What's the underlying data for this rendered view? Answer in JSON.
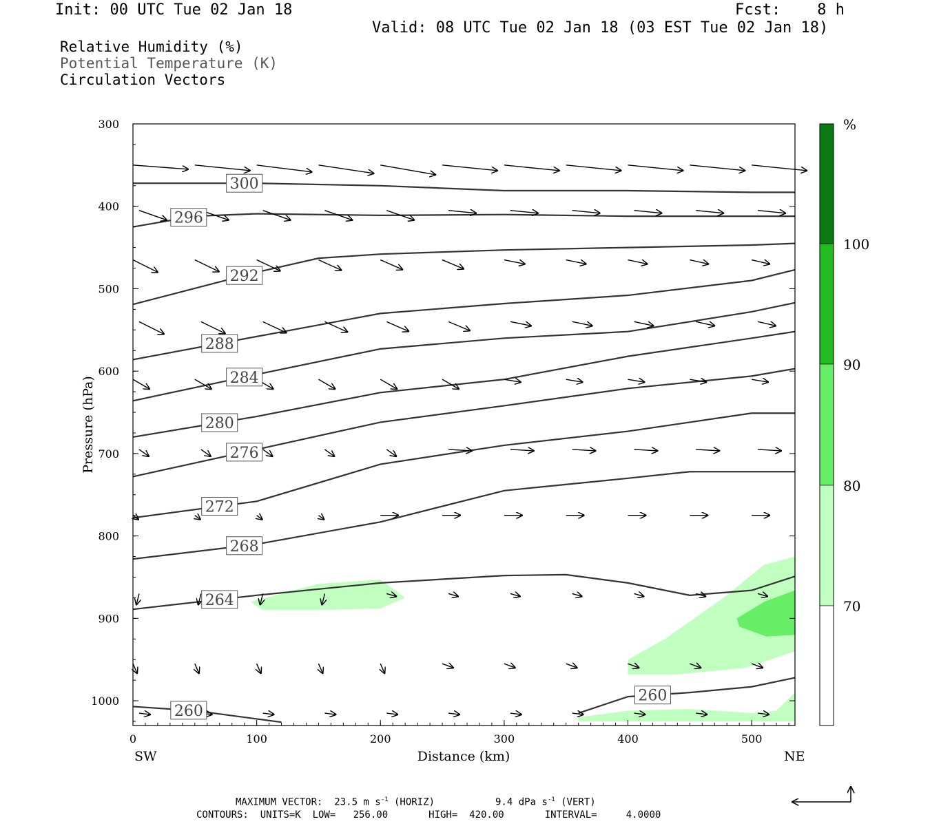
{
  "header": {
    "init": "Init: 00 UTC Tue 02 Jan 18",
    "fcst": "Fcst:    8 h",
    "valid": "Valid: 08 UTC Tue 02 Jan 18 (03 EST Tue 02 Jan 18)"
  },
  "fields": {
    "rh": "Relative Humidity (%)",
    "theta": "Potential Temperature (K)",
    "vectors": "Circulation Vectors"
  },
  "footer": {
    "max_vector": "MAXIMUM VECTOR:  23.5 m s",
    "max_vector_horiz": " (HORIZ)",
    "max_vector_vert_prefix": "9.4 dPa s",
    "max_vector_vert": " (VERT)",
    "exponent": "-1",
    "contours": "CONTOURS:  UNITS=K  LOW=   256.00       HIGH=  420.00       INTERVAL=     4.0000"
  },
  "colors": {
    "rh70": "#c0ffc0",
    "rh80": "#66ee66",
    "rh90": "#22bb22",
    "rh100": "#0b7a14",
    "contour": "#333333"
  },
  "chart_data": {
    "type": "cross-section",
    "xlabel": "Distance (km)",
    "ylabel": "Pressure (hPa)",
    "x_ticks": [
      "0",
      "100",
      "200",
      "300",
      "400",
      "500"
    ],
    "y_ticks": [
      "300",
      "400",
      "500",
      "600",
      "700",
      "800",
      "900",
      "1000"
    ],
    "xlim": [
      0,
      535
    ],
    "ylim": [
      1030,
      300
    ],
    "endpoints": {
      "left": "SW",
      "right": "NE"
    },
    "colorbar": {
      "unit": "%",
      "levels": [
        "70",
        "80",
        "90",
        "100"
      ]
    },
    "contour_levels": [
      260,
      264,
      268,
      272,
      276,
      280,
      284,
      288,
      292,
      296,
      300
    ],
    "isentropes": [
      {
        "theta": 300,
        "points": [
          [
            0,
            372
          ],
          [
            100,
            372
          ],
          [
            200,
            375
          ],
          [
            300,
            381
          ],
          [
            400,
            381
          ],
          [
            500,
            383
          ],
          [
            535,
            383
          ]
        ]
      },
      {
        "theta": 296,
        "points": [
          [
            0,
            425
          ],
          [
            50,
            412
          ],
          [
            100,
            409
          ],
          [
            200,
            411
          ],
          [
            300,
            410
          ],
          [
            400,
            412
          ],
          [
            500,
            412
          ],
          [
            535,
            412
          ]
        ]
      },
      {
        "theta": 292,
        "points": [
          [
            0,
            519
          ],
          [
            100,
            480
          ],
          [
            150,
            463
          ],
          [
            200,
            458
          ],
          [
            300,
            453
          ],
          [
            400,
            450
          ],
          [
            500,
            447
          ],
          [
            535,
            445
          ]
        ]
      },
      {
        "theta": 288,
        "points": [
          [
            0,
            586
          ],
          [
            100,
            558
          ],
          [
            200,
            530
          ],
          [
            300,
            518
          ],
          [
            400,
            508
          ],
          [
            500,
            490
          ],
          [
            535,
            477
          ]
        ]
      },
      {
        "theta": 284,
        "points": [
          [
            0,
            636
          ],
          [
            100,
            604
          ],
          [
            200,
            573
          ],
          [
            300,
            560
          ],
          [
            400,
            552
          ],
          [
            500,
            528
          ],
          [
            535,
            517
          ]
        ]
      },
      {
        "theta": 280,
        "points": [
          [
            0,
            680
          ],
          [
            100,
            655
          ],
          [
            200,
            626
          ],
          [
            300,
            610
          ],
          [
            400,
            582
          ],
          [
            500,
            560
          ],
          [
            535,
            552
          ]
        ]
      },
      {
        "theta": 276,
        "points": [
          [
            0,
            728
          ],
          [
            100,
            695
          ],
          [
            200,
            662
          ],
          [
            300,
            642
          ],
          [
            400,
            621
          ],
          [
            500,
            606
          ],
          [
            535,
            597
          ]
        ]
      },
      {
        "theta": 272,
        "points": [
          [
            0,
            778
          ],
          [
            100,
            758
          ],
          [
            200,
            713
          ],
          [
            300,
            690
          ],
          [
            400,
            673
          ],
          [
            500,
            651
          ],
          [
            535,
            651
          ]
        ]
      },
      {
        "theta": 268,
        "points": [
          [
            0,
            828
          ],
          [
            100,
            810
          ],
          [
            200,
            783
          ],
          [
            300,
            745
          ],
          [
            400,
            730
          ],
          [
            450,
            722
          ],
          [
            535,
            722
          ]
        ]
      },
      {
        "theta": 264,
        "points": [
          [
            0,
            889
          ],
          [
            100,
            872
          ],
          [
            200,
            857
          ],
          [
            300,
            848
          ],
          [
            350,
            847
          ],
          [
            400,
            857
          ],
          [
            450,
            872
          ],
          [
            500,
            866
          ],
          [
            535,
            849
          ]
        ]
      },
      {
        "theta": 260,
        "points": [
          [
            360,
            1015
          ],
          [
            400,
            995
          ],
          [
            450,
            990
          ],
          [
            500,
            983
          ],
          [
            535,
            972
          ]
        ]
      },
      {
        "theta": 260,
        "points": [
          [
            0,
            1007
          ],
          [
            50,
            1012
          ],
          [
            100,
            1022
          ],
          [
            120,
            1026
          ]
        ]
      }
    ],
    "rh_regions": [
      {
        "level": "70-80",
        "points": [
          [
            95,
            880
          ],
          [
            150,
            858
          ],
          [
            200,
            853
          ],
          [
            220,
            875
          ],
          [
            200,
            888
          ],
          [
            150,
            890
          ],
          [
            105,
            890
          ]
        ]
      },
      {
        "level": "70-80",
        "points": [
          [
            400,
            950
          ],
          [
            430,
            925
          ],
          [
            480,
            872
          ],
          [
            510,
            835
          ],
          [
            535,
            825
          ],
          [
            535,
            940
          ],
          [
            495,
            960
          ],
          [
            440,
            968
          ],
          [
            400,
            968
          ]
        ]
      },
      {
        "level": "70-80",
        "points": [
          [
            360,
            1020
          ],
          [
            400,
            1012
          ],
          [
            450,
            1010
          ],
          [
            500,
            1015
          ],
          [
            520,
            1012
          ],
          [
            535,
            990
          ],
          [
            535,
            1025
          ],
          [
            360,
            1025
          ]
        ]
      },
      {
        "level": "80-90",
        "points": [
          [
            488,
            900
          ],
          [
            510,
            880
          ],
          [
            535,
            866
          ],
          [
            535,
            920
          ],
          [
            512,
            922
          ],
          [
            490,
            910
          ]
        ]
      }
    ],
    "vectors": {
      "rows_hpa": [
        350,
        405,
        465,
        540,
        610,
        695,
        775,
        870,
        955,
        1015
      ],
      "cols_km": [
        0,
        50,
        100,
        150,
        200,
        250,
        300,
        350,
        400,
        450,
        500
      ],
      "note": "arrows point mostly downslope-east aloft, weak flow near surface"
    }
  }
}
